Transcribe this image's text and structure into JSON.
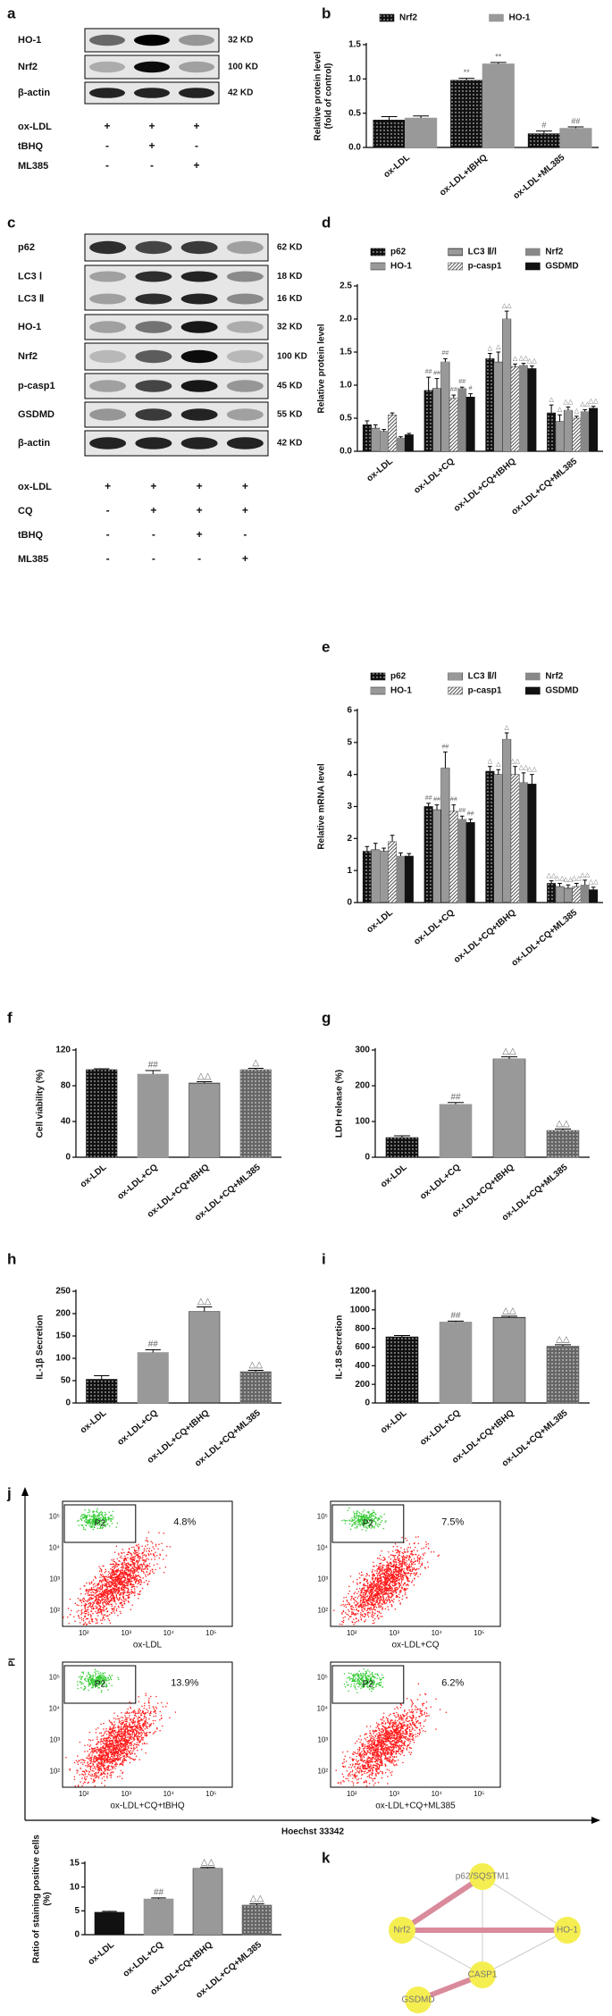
{
  "blots": [
    {
      "panel": "a",
      "rows": [
        {
          "label": "HO-1",
          "size": "32 KD"
        },
        {
          "label": "Nrf2",
          "size": "100 KD"
        },
        {
          "label": "β-actin",
          "size": "42 KD"
        }
      ],
      "conditions": [
        {
          "name": "ox-LDL",
          "signs": [
            "+",
            "+",
            "+"
          ]
        },
        {
          "name": "tBHQ",
          "signs": [
            "-",
            "+",
            "-"
          ]
        },
        {
          "name": "ML385",
          "signs": [
            "-",
            "-",
            "+"
          ]
        }
      ]
    },
    {
      "panel": "c",
      "rows": [
        {
          "label": "p62",
          "size": "62 KD"
        },
        {
          "label": "LC3 Ⅰ",
          "size": "18 KD"
        },
        {
          "label": "LC3 Ⅱ",
          "size": "16 KD"
        },
        {
          "label": "HO-1",
          "size": "32 KD"
        },
        {
          "label": "Nrf2",
          "size": "100 KD"
        },
        {
          "label": "p-casp1",
          "size": "45 KD"
        },
        {
          "label": "GSDMD",
          "size": "55 KD"
        },
        {
          "label": "β-actin",
          "size": "42 KD"
        }
      ],
      "conditions": [
        {
          "name": "ox-LDL",
          "signs": [
            "+",
            "+",
            "+",
            "+"
          ]
        },
        {
          "name": "CQ",
          "signs": [
            "-",
            "+",
            "+",
            "+"
          ]
        },
        {
          "name": "tBHQ",
          "signs": [
            "-",
            "-",
            "+",
            "-"
          ]
        },
        {
          "name": "ML385",
          "signs": [
            "-",
            "-",
            "-",
            "+"
          ]
        }
      ]
    }
  ],
  "chart_data": [
    {
      "type": "bar",
      "panel": "b",
      "ylabel": [
        "Relative protein level",
        "(fold of control)"
      ],
      "legend": "top",
      "categories": [
        "ox-LDL",
        "ox-LDL+tBHQ",
        "ox-LDL+ML385"
      ],
      "series": [
        {
          "name": "Nrf2",
          "color": "#111111",
          "pattern": "dots",
          "values": [
            0.4,
            0.98,
            0.2
          ],
          "errors": [
            0.05,
            0.03,
            0.04
          ],
          "annotations": [
            null,
            "**",
            "#"
          ]
        },
        {
          "name": "HO-1",
          "color": "#999999",
          "pattern": "solid",
          "values": [
            0.43,
            1.22,
            0.28
          ],
          "errors": [
            0.03,
            0.02,
            0.02
          ],
          "annotations": [
            null,
            "**",
            "##"
          ]
        }
      ],
      "ylim": [
        0,
        1.5
      ],
      "yticks": [
        {
          "value": 0,
          "label": "0.0"
        },
        0.5,
        {
          "value": 1,
          "label": "1.0"
        },
        1.5
      ]
    },
    {
      "type": "bar",
      "panel": "d",
      "ylabel": "Relative protein level",
      "legend": "top",
      "categories": [
        "ox-LDL",
        "ox-LDL+CQ",
        "ox-LDL+CQ+tBHQ",
        "ox-LDL+CQ+ML385"
      ],
      "series": [
        {
          "name": "p62",
          "color": "#111111",
          "pattern": "dots",
          "values": [
            0.4,
            0.92,
            1.4,
            0.58
          ],
          "errors": [
            0.06,
            0.2,
            0.08,
            0.12
          ],
          "annotations": [
            null,
            "##",
            "△",
            "△"
          ]
        },
        {
          "name": "HO-1",
          "color": "#333333",
          "pattern": "vstripe",
          "values": [
            0.35,
            0.95,
            1.35,
            0.45
          ],
          "errors": [
            0.05,
            0.15,
            0.15,
            0.1
          ],
          "annotations": [
            null,
            "##",
            "△",
            "△"
          ]
        },
        {
          "name": "LC3 Ⅱ/Ⅰ",
          "color": "#333333",
          "pattern": "hstripe",
          "values": [
            0.3,
            1.35,
            2.0,
            0.62
          ],
          "errors": [
            0.03,
            0.05,
            0.12,
            0.05
          ],
          "annotations": [
            null,
            "##",
            "△△",
            "△△"
          ]
        },
        {
          "name": "p-casp1",
          "color": "#555555",
          "pattern": "diag",
          "values": [
            0.55,
            0.8,
            1.28,
            0.5
          ],
          "errors": [
            0.03,
            0.05,
            0.04,
            0.03
          ],
          "annotations": [
            null,
            "##",
            "△",
            "△"
          ]
        },
        {
          "name": "Nrf2",
          "color": "#888888",
          "pattern": "solid",
          "values": [
            0.2,
            0.95,
            1.3,
            0.6
          ],
          "errors": [
            0.02,
            0.02,
            0.03,
            0.03
          ],
          "annotations": [
            null,
            "##",
            "△△",
            "△△"
          ]
        },
        {
          "name": "GSDMD",
          "color": "#111111",
          "pattern": "solid",
          "values": [
            0.25,
            0.82,
            1.25,
            0.65
          ],
          "errors": [
            0.02,
            0.05,
            0.04,
            0.03
          ],
          "annotations": [
            null,
            "#",
            "△△",
            "△△"
          ]
        }
      ],
      "ylim": [
        0,
        2.5
      ],
      "yticks": [
        {
          "value": 0,
          "label": "0.0"
        },
        0.5,
        {
          "value": 1,
          "label": "1.0"
        },
        1.5,
        {
          "value": 2,
          "label": "2.0"
        },
        2.5
      ]
    },
    {
      "type": "bar",
      "panel": "e",
      "ylabel": "Relative mRNA level",
      "legend": "top",
      "categories": [
        "ox-LDL",
        "ox-LDL+CQ",
        "ox-LDL+CQ+tBHQ",
        "ox-LDL+CQ+ML385"
      ],
      "series": [
        {
          "name": "p62",
          "color": "#111111",
          "pattern": "dots",
          "values": [
            1.6,
            3.0,
            4.1,
            0.6
          ],
          "errors": [
            0.15,
            0.1,
            0.15,
            0.08
          ],
          "annotations": [
            null,
            "##",
            "△",
            "△△"
          ]
        },
        {
          "name": "HO-1",
          "color": "#333333",
          "pattern": "vstripe",
          "values": [
            1.65,
            2.9,
            4.0,
            0.5
          ],
          "errors": [
            0.2,
            0.15,
            0.15,
            0.1
          ],
          "annotations": [
            null,
            "##",
            "△",
            "△△"
          ]
        },
        {
          "name": "LC3 Ⅱ/Ⅰ",
          "color": "#333333",
          "pattern": "hstripe",
          "values": [
            1.6,
            4.2,
            5.1,
            0.45
          ],
          "errors": [
            0.1,
            0.5,
            0.2,
            0.1
          ],
          "annotations": [
            null,
            "##",
            "△",
            "△△"
          ]
        },
        {
          "name": "p-casp1",
          "color": "#555555",
          "pattern": "diag",
          "values": [
            1.9,
            2.85,
            4.0,
            0.5
          ],
          "errors": [
            0.2,
            0.2,
            0.25,
            0.1
          ],
          "annotations": [
            null,
            "##",
            "△△",
            "△△"
          ]
        },
        {
          "name": "Nrf2",
          "color": "#888888",
          "pattern": "solid",
          "values": [
            1.45,
            2.6,
            3.75,
            0.55
          ],
          "errors": [
            0.1,
            0.1,
            0.3,
            0.15
          ],
          "annotations": [
            null,
            "##",
            "△△",
            "△△"
          ]
        },
        {
          "name": "GSDMD",
          "color": "#111111",
          "pattern": "solid",
          "values": [
            1.45,
            2.5,
            3.7,
            0.4
          ],
          "errors": [
            0.08,
            0.1,
            0.3,
            0.08
          ],
          "annotations": [
            null,
            "##",
            "△△",
            "△△"
          ]
        }
      ],
      "ylim": [
        0,
        6
      ],
      "yticks": [
        0,
        1,
        2,
        3,
        4,
        5,
        6
      ]
    },
    {
      "type": "bar",
      "panel": "f",
      "ylabel": "Cell viability (%)",
      "categories": [
        "ox-LDL",
        "ox-LDL+CQ",
        "ox-LDL+CQ+tBHQ",
        "ox-LDL+CQ+ML385"
      ],
      "values": [
        98,
        93,
        83,
        98
      ],
      "errors": [
        1,
        4,
        1.5,
        1.5
      ],
      "annotations": [
        null,
        "##",
        "△△",
        "△"
      ],
      "colors": [
        "#111111",
        "#999999",
        "#333333",
        "#666666"
      ],
      "patterns": [
        "dots",
        "solid",
        "hstripe",
        "dots"
      ],
      "ylim": [
        0,
        120
      ],
      "yticks": [
        0,
        40,
        80,
        120
      ]
    },
    {
      "type": "bar",
      "panel": "g",
      "ylabel": "LDH release (%)",
      "categories": [
        "ox-LDL",
        "ox-LDL+CQ",
        "ox-LDL+CQ+tBHQ",
        "ox-LDL+CQ+ML385"
      ],
      "values": [
        55,
        148,
        275,
        75
      ],
      "errors": [
        5,
        5,
        6,
        4
      ],
      "annotations": [
        null,
        "##",
        "△△",
        "△△"
      ],
      "colors": [
        "#111111",
        "#999999",
        "#333333",
        "#666666"
      ],
      "patterns": [
        "dots",
        "solid",
        "hstripe",
        "dots"
      ],
      "ylim": [
        0,
        300
      ],
      "yticks": [
        0,
        100,
        200,
        300
      ]
    },
    {
      "type": "bar",
      "panel": "h",
      "ylabel": "IL-1β Secretion",
      "categories": [
        "ox-LDL",
        "ox-LDL+CQ",
        "ox-LDL+CQ+tBHQ",
        "ox-LDL+CQ+ML385"
      ],
      "values": [
        53,
        113,
        205,
        70
      ],
      "errors": [
        8,
        6,
        10,
        3
      ],
      "annotations": [
        null,
        "##",
        "△△",
        "△△"
      ],
      "colors": [
        "#111111",
        "#999999",
        "#333333",
        "#666666"
      ],
      "patterns": [
        "dots",
        "solid",
        "hstripe",
        "dots"
      ],
      "ylim": [
        0,
        250
      ],
      "yticks": [
        0,
        50,
        100,
        150,
        200,
        250
      ]
    },
    {
      "type": "bar",
      "panel": "i",
      "ylabel": "IL-18 Secretion",
      "categories": [
        "ox-LDL",
        "ox-LDL+CQ",
        "ox-LDL+CQ+tBHQ",
        "ox-LDL+CQ+ML385"
      ],
      "values": [
        710,
        870,
        920,
        610
      ],
      "errors": [
        15,
        10,
        12,
        15
      ],
      "annotations": [
        null,
        "##",
        "△△",
        "△△"
      ],
      "colors": [
        "#111111",
        "#999999",
        "#333333",
        "#666666"
      ],
      "patterns": [
        "dots",
        "solid",
        "hstripe",
        "dots"
      ],
      "ylim": [
        0,
        1200
      ],
      "yticks": [
        0,
        200,
        400,
        600,
        800,
        1000,
        1200
      ]
    },
    {
      "type": "bar",
      "ylabel": [
        "Ratio of staining positive cells",
        "(%)"
      ],
      "categories": [
        "ox-LDL",
        "ox-LDL+CQ",
        "ox-LDL+CQ+tBHQ",
        "ox-LDL+CQ+ML385"
      ],
      "values": [
        4.7,
        7.5,
        13.9,
        6.2
      ],
      "errors": [
        0.2,
        0.2,
        0.2,
        0.3
      ],
      "annotations": [
        null,
        "##",
        "△△",
        "△△"
      ],
      "colors": [
        "#111111",
        "#999999",
        "#333333",
        "#666666"
      ],
      "patterns": [
        "solid",
        "solid",
        "hstripe",
        "dots"
      ],
      "ylim": [
        0,
        15
      ],
      "yticks": [
        0,
        5,
        10,
        15
      ]
    }
  ],
  "flow": {
    "panel": "j",
    "ylabel": "PI",
    "xlabel": "Hoechst 33342",
    "xticks": [
      "10²",
      "10³",
      "10⁴",
      "10⁵"
    ],
    "yticks": [
      "10⁵",
      "10⁴",
      "10³",
      "10²"
    ],
    "plots": [
      {
        "label": "ox-LDL",
        "gate": "P2",
        "percent": "4.8%"
      },
      {
        "label": "ox-LDL+CQ",
        "gate": "P2",
        "percent": "7.5%"
      },
      {
        "label": "ox-LDL+CQ+tBHQ",
        "gate": "P2",
        "percent": "13.9%"
      },
      {
        "label": "ox-LDL+CQ+ML385",
        "gate": "P2",
        "percent": "6.2%"
      }
    ]
  },
  "network": {
    "panel": "k",
    "nodes": [
      "p62/SQSTM1",
      "Nrf2",
      "HO-1",
      "CASP1",
      "GSDMD"
    ]
  }
}
